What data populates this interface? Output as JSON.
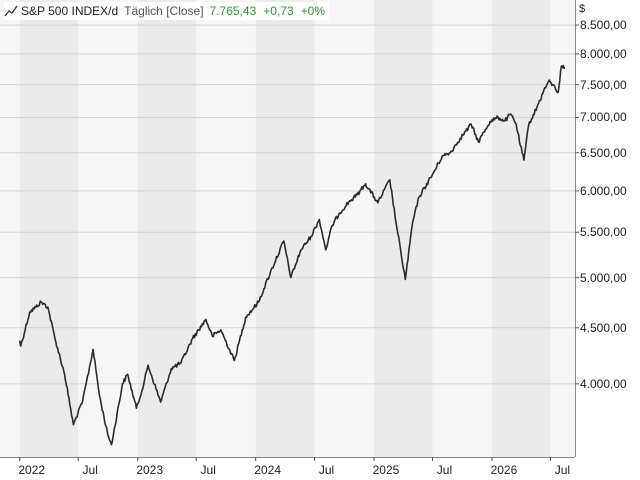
{
  "legend": {
    "title": "S&P 500 INDEX/d",
    "mode": "Täglich [Close]",
    "last": "7.765,43",
    "change": "+0,73",
    "change_pct": "+0%",
    "icon": "line-chart-icon"
  },
  "colors": {
    "line": "#2b2b2b",
    "band_dark": "#ebebeb",
    "band_light": "#f6f6f6",
    "grid": "#d6d6d6",
    "positive": "#2e9b3a"
  },
  "chart_data": {
    "type": "line",
    "title": "",
    "series": [
      {
        "name": "S&P 500 INDEX/d",
        "x": [
          "2022-01-01",
          "2022-01-04",
          "2022-02-01",
          "2022-02-20",
          "2022-03-08",
          "2022-03-29",
          "2022-04-20",
          "2022-05-20",
          "2022-06-16",
          "2022-07-15",
          "2022-08-16",
          "2022-09-05",
          "2022-09-30",
          "2022-10-12",
          "2022-11-15",
          "2022-12-01",
          "2022-12-28",
          "2023-01-20",
          "2023-02-02",
          "2023-03-13",
          "2023-04-15",
          "2023-05-15",
          "2023-06-20",
          "2023-07-31",
          "2023-08-20",
          "2023-09-15",
          "2023-10-27",
          "2023-12-01",
          "2024-01-10",
          "2024-02-15",
          "2024-03-28",
          "2024-04-19",
          "2024-05-20",
          "2024-06-20",
          "2024-07-16",
          "2024-08-05",
          "2024-08-25",
          "2024-09-15",
          "2024-10-15",
          "2024-11-10",
          "2024-12-06",
          "2025-01-13",
          "2025-02-19",
          "2025-03-13",
          "2025-04-08",
          "2025-04-30",
          "2025-05-20",
          "2025-06-30",
          "2025-07-31",
          "2025-08-25",
          "2025-09-25",
          "2025-10-29",
          "2025-11-20",
          "2025-12-26",
          "2026-01-20",
          "2026-02-10",
          "2026-02-28",
          "2026-03-17",
          "2026-03-30",
          "2026-04-10",
          "2026-04-25",
          "2026-05-20",
          "2026-06-10",
          "2026-06-25",
          "2026-07-08",
          "2026-07-25",
          "2026-08-04",
          "2026-08-15"
        ],
        "y": [
          4380,
          4330,
          4650,
          4700,
          4750,
          4700,
          4400,
          4080,
          3670,
          3860,
          4300,
          3900,
          3600,
          3520,
          4000,
          4080,
          3800,
          4000,
          4160,
          3850,
          4130,
          4180,
          4400,
          4580,
          4420,
          4480,
          4200,
          4600,
          4750,
          5050,
          5400,
          5000,
          5300,
          5450,
          5650,
          5300,
          5580,
          5720,
          5860,
          5950,
          6090,
          5850,
          6140,
          5550,
          4980,
          5600,
          5920,
          6200,
          6450,
          6500,
          6700,
          6900,
          6650,
          6940,
          7000,
          6950,
          7050,
          6900,
          6600,
          6400,
          6900,
          7150,
          7400,
          7550,
          7500,
          7380,
          7800,
          7765.43
        ]
      }
    ],
    "y_axis": {
      "ticks": [
        4000,
        4500,
        5000,
        5500,
        6000,
        6500,
        7000,
        7500,
        8000,
        8500
      ],
      "tick_labels": [
        "4.000,00",
        "4.500,00",
        "5.000,00",
        "5.500,00",
        "6.000,00",
        "6.500,00",
        "7.000,00",
        "7.500,00",
        "8.000,00",
        "8.500,00"
      ],
      "unit": "$",
      "scale": "log",
      "range": [
        3430,
        8960
      ],
      "position": "right"
    },
    "x_axis": {
      "range": [
        "2021-11-01",
        "2026-09-15"
      ],
      "ticks": [
        "2022-01-01",
        "2022-07-01",
        "2023-01-01",
        "2023-07-01",
        "2024-01-01",
        "2024-07-01",
        "2025-01-01",
        "2025-07-01",
        "2026-01-01",
        "2026-07-01"
      ],
      "tick_labels": [
        "2022",
        "Jul",
        "2023",
        "Jul",
        "2024",
        "Jul",
        "2025",
        "Jul",
        "2026",
        "Jul"
      ]
    },
    "grid": true,
    "legend_position": "top-left"
  }
}
